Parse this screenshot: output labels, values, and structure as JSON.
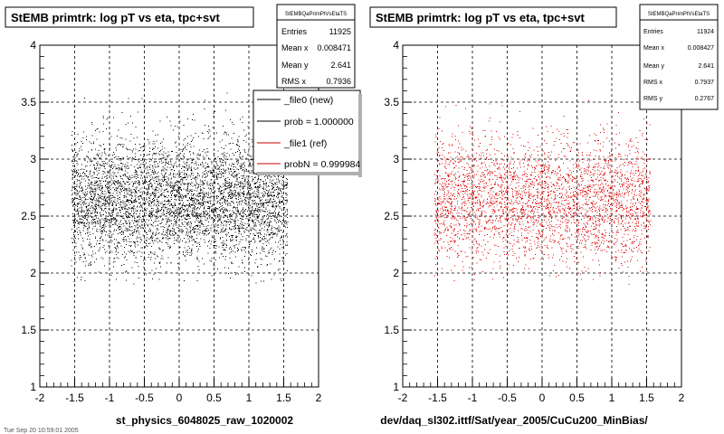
{
  "chart_data": [
    {
      "type": "scatter",
      "title": "StEMB primtrk: log pT vs eta, tpc+svt",
      "xlabel": "st_physics_6048025_raw_1020002",
      "ylabel": "",
      "xlim": [
        -2,
        2
      ],
      "ylim": [
        1,
        4
      ],
      "xticks": [
        "-2",
        "-1.5",
        "-1",
        "-0.5",
        "0",
        "0.5",
        "1",
        "1.5",
        "2"
      ],
      "yticks": [
        "1",
        "1.5",
        "2",
        "2.5",
        "3",
        "3.5",
        "4"
      ],
      "grid": true,
      "marker_color": "#000000",
      "distribution": {
        "eta_range": [
          -1.55,
          1.55
        ],
        "logpt_mean": 2.641,
        "logpt_rms": 0.2767,
        "logpt_range": [
          1.9,
          3.75
        ]
      },
      "stats": {
        "name": "StEMBQaPrimPtVsEtaTS",
        "rows": [
          {
            "label": "Entries",
            "value": "11925"
          },
          {
            "label": "Mean x",
            "value": "0.008471"
          },
          {
            "label": "Mean y",
            "value": "2.641"
          },
          {
            "label": "RMS x",
            "value": "0.7936"
          }
        ]
      },
      "legend": {
        "position": "top-right",
        "entries": [
          {
            "label": "_file0 (new)",
            "color": "#000000"
          },
          {
            "label": "prob = 1.000000",
            "color": "#000000"
          },
          {
            "label": "_file1 (ref)",
            "color": "#cc0000"
          },
          {
            "label": "probN = 0.999984",
            "color": "#cc0000"
          }
        ]
      }
    },
    {
      "type": "scatter",
      "title": "StEMB primtrk: log pT vs eta, tpc+svt",
      "xlabel": "dev/daq_sl302.ittf/Sat/year_2005/CuCu200_MinBias/",
      "ylabel": "",
      "xlim": [
        -2,
        2
      ],
      "ylim": [
        1,
        4
      ],
      "xticks": [
        "-2",
        "-1.5",
        "-1",
        "-0.5",
        "0",
        "0.5",
        "1",
        "1.5",
        "2"
      ],
      "yticks": [
        "1",
        "1.5",
        "2",
        "2.5",
        "3",
        "3.5",
        "4"
      ],
      "grid": true,
      "marker_color": "#dd0000",
      "distribution": {
        "eta_range": [
          -1.55,
          1.55
        ],
        "logpt_mean": 2.641,
        "logpt_rms": 0.2767,
        "logpt_range": [
          1.9,
          3.75
        ]
      },
      "stats": {
        "name": "StEMBQaPrimPtVsEtaTS",
        "rows": [
          {
            "label": "Entries",
            "value": "11924"
          },
          {
            "label": "Mean x",
            "value": "0.008427"
          },
          {
            "label": "Mean y",
            "value": "2.641"
          },
          {
            "label": "RMS x",
            "value": "0.7937"
          },
          {
            "label": "RMS y",
            "value": "0.2767"
          }
        ]
      }
    }
  ],
  "footer": {
    "text": "Tue Sep 20 10:59:01 2005"
  }
}
